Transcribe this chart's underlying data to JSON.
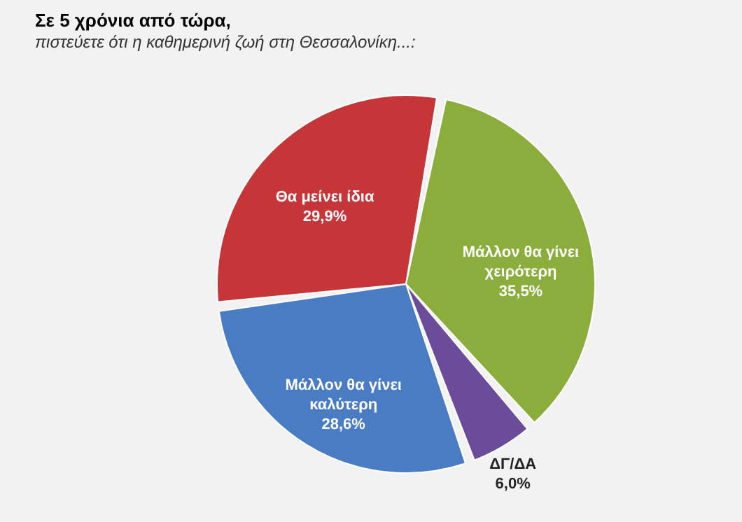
{
  "chart_data": {
    "type": "pie",
    "title": "Σε 5 χρόνια από τώρα,",
    "subtitle": "πιστεύετε ότι η καθημερινή ζωή στη Θεσσαλονίκη...:",
    "categories": [
      "Θα μείνει ίδια",
      "Μάλλον θα γίνει χειρότερη",
      "ΔΓ/ΔΑ",
      "Μάλλον θα γίνει καλύτερη"
    ],
    "values": [
      29.9,
      35.5,
      6.0,
      28.6
    ],
    "colors": [
      "#c63639",
      "#8aad3b",
      "#6b4c9a",
      "#4a7cc4"
    ],
    "value_labels": [
      "29,9%",
      "35,5%",
      "6,0%",
      "28,6%"
    ]
  }
}
